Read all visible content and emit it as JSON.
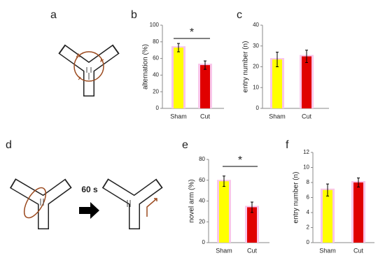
{
  "panel_labels": [
    "a",
    "b",
    "c",
    "d",
    "e",
    "f"
  ],
  "diagram_label": "60 s",
  "chart_data": [
    {
      "type": "bar",
      "ylabel": "alternation (%)",
      "categories": [
        "Sham",
        "Cut"
      ],
      "values": [
        73,
        52
      ],
      "errors": [
        5,
        5
      ],
      "colors": [
        "#ffff00",
        "#e00000"
      ],
      "ylim": [
        0,
        100
      ],
      "yticks": [
        0,
        20,
        40,
        60,
        80,
        100
      ],
      "annotation": "*"
    },
    {
      "type": "bar",
      "ylabel": "entry number (n)",
      "categories": [
        "Sham",
        "Cut"
      ],
      "values": [
        23.5,
        25
      ],
      "errors": [
        3.5,
        3
      ],
      "colors": [
        "#ffff00",
        "#e00000"
      ],
      "ylim": [
        0,
        40
      ],
      "yticks": [
        0,
        10,
        20,
        30,
        40
      ]
    },
    {
      "type": "bar",
      "ylabel": "novel arm (%)",
      "categories": [
        "Sham",
        "Cut"
      ],
      "values": [
        59,
        34
      ],
      "errors": [
        5,
        5
      ],
      "colors": [
        "#ffff00",
        "#e00000"
      ],
      "ylim": [
        0,
        80
      ],
      "yticks": [
        0,
        20,
        40,
        60,
        80
      ],
      "annotation": "*"
    },
    {
      "type": "bar",
      "ylabel": "entry number (n)",
      "categories": [
        "Sham",
        "Cut"
      ],
      "values": [
        7,
        8
      ],
      "errors": [
        0.8,
        0.6
      ],
      "colors": [
        "#ffff00",
        "#e00000"
      ],
      "ylim": [
        0,
        12
      ],
      "yticks": [
        0,
        2,
        4,
        6,
        8,
        10,
        12
      ]
    }
  ]
}
